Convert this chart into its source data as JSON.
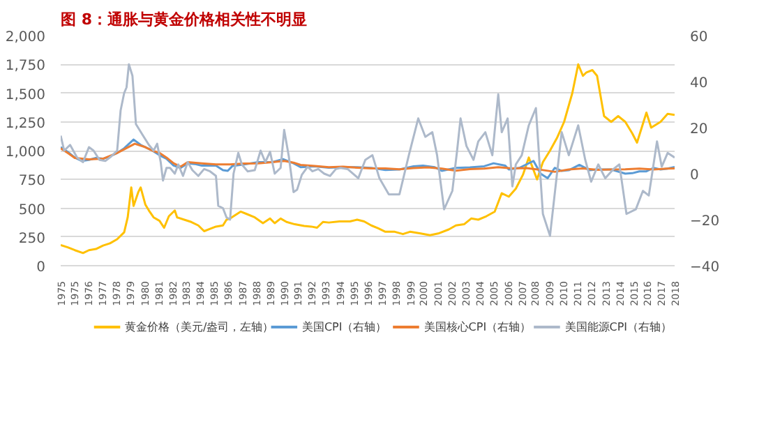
{
  "chart_data": {
    "type": "line",
    "title": "图 8：通胀与黄金价格相关性不明显",
    "xlim": [
      "1975-01",
      "2018-07"
    ],
    "xticks": [
      {
        "value": "1975-01",
        "label": "1975"
      },
      {
        "value": "1975-12",
        "label": "1975"
      },
      {
        "value": "1976-12",
        "label": "1976"
      },
      {
        "value": "1977-12",
        "label": "1977"
      },
      {
        "value": "1978-12",
        "label": "1978"
      },
      {
        "value": "1979-12",
        "label": "1979"
      },
      {
        "value": "1980-12",
        "label": "1980"
      },
      {
        "value": "1981-12",
        "label": "1981"
      },
      {
        "value": "1982-12",
        "label": "1982"
      },
      {
        "value": "1983-11",
        "label": "1983"
      },
      {
        "value": "1984-11",
        "label": "1984"
      },
      {
        "value": "1985-11",
        "label": "1985"
      },
      {
        "value": "1986-11",
        "label": "1986"
      },
      {
        "value": "1987-11",
        "label": "1987"
      },
      {
        "value": "1988-11",
        "label": "1988"
      },
      {
        "value": "1989-11",
        "label": "1989"
      },
      {
        "value": "1990-11",
        "label": "1990"
      },
      {
        "value": "1991-10",
        "label": "1991"
      },
      {
        "value": "1992-10",
        "label": "1992"
      },
      {
        "value": "1993-10",
        "label": "1993"
      },
      {
        "value": "1994-10",
        "label": "1994"
      },
      {
        "value": "1995-10",
        "label": "1995"
      },
      {
        "value": "1996-10",
        "label": "1996"
      },
      {
        "value": "1997-10",
        "label": "1997"
      },
      {
        "value": "1998-10",
        "label": "1998"
      },
      {
        "value": "1999-10",
        "label": "1999"
      },
      {
        "value": "2000-09",
        "label": "2000"
      },
      {
        "value": "2001-09",
        "label": "2001"
      },
      {
        "value": "2002-09",
        "label": "2002"
      },
      {
        "value": "2003-09",
        "label": "2003"
      },
      {
        "value": "2004-09",
        "label": "2004"
      },
      {
        "value": "2005-09",
        "label": "2005"
      },
      {
        "value": "2006-09",
        "label": "2006"
      },
      {
        "value": "2007-09",
        "label": "2007"
      },
      {
        "value": "2008-08",
        "label": "2008"
      },
      {
        "value": "2009-08",
        "label": "2009"
      },
      {
        "value": "2010-08",
        "label": "2010"
      },
      {
        "value": "2011-08",
        "label": "2011"
      },
      {
        "value": "2012-08",
        "label": "2012"
      },
      {
        "value": "2013-08",
        "label": "2013"
      },
      {
        "value": "2014-08",
        "label": "2014"
      },
      {
        "value": "2015-08",
        "label": "2015"
      },
      {
        "value": "2016-07",
        "label": "2016"
      },
      {
        "value": "2017-07",
        "label": "2017"
      },
      {
        "value": "2018-07",
        "label": "2018"
      }
    ],
    "ylim": [
      0,
      2000
    ],
    "yticks": [
      0,
      250,
      500,
      750,
      {
        "value": 1000,
        "label": "1,000"
      },
      {
        "value": 1250,
        "label": "1,250"
      },
      {
        "value": 1500,
        "label": "1,500"
      },
      {
        "value": 1750,
        "label": "1,750"
      },
      {
        "value": 2000,
        "label": "2,000"
      }
    ],
    "y2lim": [
      -40,
      60
    ],
    "y2ticks": [
      -40,
      -20,
      0,
      20,
      40,
      60
    ],
    "grid": "y",
    "legend": "bottom",
    "line_style": "solid",
    "series": [
      {
        "name": "黄金价格（美元/盎司，左轴）",
        "color": "#ffc000",
        "x": [
          "1975-01",
          "1975-07",
          "1976-01",
          "1976-08",
          "1977-01",
          "1977-07",
          "1978-01",
          "1978-07",
          "1979-01",
          "1979-07",
          "1979-10",
          "1980-01",
          "1980-03",
          "1980-07",
          "1980-09",
          "1981-01",
          "1981-04",
          "1981-08",
          "1982-01",
          "1982-05",
          "1982-09",
          "1983-02",
          "1983-04",
          "1983-10",
          "1984-04",
          "1984-10",
          "1985-03",
          "1985-08",
          "1986-01",
          "1986-07",
          "1986-10",
          "1987-01",
          "1987-10",
          "1988-03",
          "1988-10",
          "1989-05",
          "1989-11",
          "1990-03",
          "1990-08",
          "1991-01",
          "1991-08",
          "1992-04",
          "1992-10",
          "1993-03",
          "1993-08",
          "1994-01",
          "1994-10",
          "1995-07",
          "1996-01",
          "1996-07",
          "1997-01",
          "1997-07",
          "1998-01",
          "1998-09",
          "1999-04",
          "1999-10",
          "2000-07",
          "2001-03",
          "2001-10",
          "2002-07",
          "2003-01",
          "2003-08",
          "2004-02",
          "2004-08",
          "2005-03",
          "2005-10",
          "2006-04",
          "2006-10",
          "2007-04",
          "2007-10",
          "2008-03",
          "2008-10",
          "2009-03",
          "2009-09",
          "2010-03",
          "2010-09",
          "2011-04",
          "2011-09",
          "2012-01",
          "2012-04",
          "2012-09",
          "2013-01",
          "2013-07",
          "2014-01",
          "2014-07",
          "2015-01",
          "2015-07",
          "2015-11",
          "2016-07",
          "2016-11",
          "2017-07",
          "2018-01",
          "2018-07"
        ],
        "values": [
          180,
          160,
          135,
          110,
          135,
          145,
          175,
          195,
          230,
          290,
          420,
          680,
          520,
          640,
          680,
          530,
          480,
          420,
          390,
          330,
          430,
          480,
          420,
          400,
          380,
          350,
          300,
          320,
          340,
          350,
          400,
          410,
          470,
          450,
          420,
          370,
          410,
          370,
          410,
          380,
          360,
          345,
          340,
          330,
          380,
          375,
          385,
          385,
          400,
          385,
          350,
          325,
          295,
          295,
          275,
          295,
          280,
          265,
          280,
          315,
          350,
          360,
          410,
          400,
          430,
          470,
          630,
          600,
          670,
          790,
          940,
          750,
          900,
          1000,
          1110,
          1250,
          1500,
          1750,
          1650,
          1680,
          1700,
          1650,
          1300,
          1250,
          1300,
          1250,
          1150,
          1070,
          1330,
          1200,
          1250,
          1320,
          1310
        ]
      },
      {
        "name": "美国CPI（右轴）",
        "color": "#5b9bd5",
        "axis": "y2",
        "x": [
          "1975-01",
          "1975-07",
          "1976-01",
          "1976-07",
          "1977-01",
          "1977-07",
          "1978-01",
          "1978-07",
          "1979-01",
          "1979-07",
          "1980-03",
          "1980-09",
          "1981-01",
          "1981-07",
          "1982-01",
          "1982-07",
          "1983-01",
          "1983-07",
          "1984-01",
          "1984-07",
          "1985-01",
          "1985-07",
          "1986-01",
          "1986-07",
          "1986-11",
          "1987-03",
          "1988-01",
          "1989-01",
          "1990-01",
          "1990-10",
          "1991-07",
          "1992-01",
          "1993-01",
          "1994-01",
          "1995-01",
          "1996-01",
          "1997-01",
          "1998-01",
          "1999-01",
          "2000-01",
          "2000-09",
          "2001-07",
          "2002-01",
          "2003-01",
          "2004-01",
          "2005-01",
          "2005-09",
          "2006-07",
          "2006-10",
          "2007-07",
          "2008-07",
          "2009-01",
          "2009-07",
          "2010-01",
          "2010-07",
          "2011-01",
          "2011-10",
          "2012-07",
          "2013-01",
          "2014-01",
          "2015-01",
          "2015-07",
          "2016-01",
          "2016-07",
          "2017-01",
          "2017-07",
          "2018-01",
          "2018-07"
        ],
        "values": [
          11.5,
          9.5,
          7,
          5.5,
          6,
          6.8,
          6.5,
          7.5,
          9,
          11,
          14.8,
          12.5,
          11.5,
          10,
          8,
          6.5,
          3.5,
          2.5,
          4.5,
          4.2,
          3.5,
          3.5,
          3.5,
          1.5,
          1.2,
          3.3,
          4,
          5,
          5,
          6.3,
          4.5,
          2.8,
          3.2,
          2.6,
          2.8,
          2.8,
          2.5,
          1.6,
          1.8,
          3.2,
          3.5,
          2.8,
          1.2,
          2.5,
          2.7,
          3.2,
          4.5,
          3.5,
          1.8,
          2.5,
          5.5,
          0,
          -2,
          2.5,
          1.2,
          1.5,
          3.8,
          1.5,
          1.8,
          1.8,
          0,
          0.2,
          1,
          1,
          2.5,
          1.8,
          2.2,
          2.9
        ]
      },
      {
        "name": "美国核心CPI（右轴）",
        "color": "#ed7d31",
        "axis": "y2",
        "x": [
          "1975-01",
          "1975-07",
          "1976-01",
          "1977-01",
          "1978-01",
          "1979-01",
          "1980-04",
          "1981-01",
          "1981-07",
          "1982-01",
          "1982-07",
          "1983-01",
          "1983-07",
          "1984-01",
          "1985-01",
          "1986-01",
          "1987-01",
          "1988-01",
          "1989-01",
          "1990-01",
          "1990-11",
          "1991-07",
          "1992-01",
          "1993-01",
          "1994-01",
          "1995-01",
          "1996-01",
          "1997-01",
          "1998-01",
          "1999-01",
          "2000-01",
          "2001-01",
          "2002-01",
          "2003-01",
          "2004-01",
          "2005-01",
          "2006-01",
          "2007-01",
          "2008-01",
          "2009-01",
          "2010-01",
          "2011-01",
          "2012-01",
          "2013-01",
          "2014-01",
          "2015-01",
          "2016-01",
          "2017-01",
          "2018-01",
          "2018-07"
        ],
        "values": [
          11,
          9,
          6.8,
          6.2,
          6.5,
          9,
          13,
          11.5,
          10,
          9,
          7,
          4.5,
          3,
          5,
          4.5,
          4,
          4,
          4.4,
          4.5,
          5,
          5.5,
          4.8,
          3.8,
          3.3,
          2.8,
          3,
          2.6,
          2.3,
          2.3,
          1.9,
          2.4,
          2.7,
          2.2,
          1.3,
          2,
          2.2,
          2.8,
          2.3,
          2.4,
          1.7,
          0.8,
          1.8,
          2.3,
          1.7,
          1.8,
          1.9,
          2.2,
          1.8,
          2.2,
          2.3
        ]
      },
      {
        "name": "美国能源CPI（右轴）",
        "color": "#adb9ca",
        "axis": "y2",
        "x": [
          "1975-01",
          "1975-04",
          "1975-09",
          "1976-03",
          "1976-08",
          "1977-01",
          "1977-05",
          "1977-10",
          "1978-03",
          "1978-08",
          "1979-01",
          "1979-04",
          "1979-07",
          "1979-09",
          "1979-11",
          "1980-02",
          "1980-05",
          "1980-11",
          "1981-04",
          "1981-08",
          "1981-11",
          "1982-02",
          "1982-04",
          "1982-07",
          "1982-10",
          "1983-02",
          "1983-05",
          "1983-09",
          "1984-01",
          "1984-05",
          "1984-10",
          "1985-03",
          "1985-08",
          "1986-01",
          "1986-03",
          "1986-07",
          "1986-10",
          "1987-01",
          "1987-04",
          "1987-08",
          "1987-11",
          "1988-04",
          "1988-10",
          "1989-03",
          "1989-07",
          "1989-11",
          "1990-03",
          "1990-08",
          "1990-11",
          "1991-03",
          "1991-07",
          "1991-10",
          "1992-02",
          "1992-07",
          "1992-11",
          "1993-04",
          "1993-09",
          "1994-02",
          "1994-07",
          "1994-11",
          "1995-05",
          "1996-02",
          "1996-08",
          "1997-02",
          "1997-08",
          "1998-04",
          "1999-01",
          "1999-09",
          "2000-05",
          "2000-11",
          "2001-05",
          "2001-09",
          "2002-03",
          "2002-10",
          "2003-02",
          "2003-05",
          "2003-10",
          "2004-04",
          "2004-08",
          "2005-02",
          "2005-08",
          "2006-01",
          "2006-04",
          "2006-09",
          "2007-01",
          "2007-04",
          "2007-09",
          "2008-03",
          "2008-09",
          "2009-03",
          "2009-09",
          "2010-03",
          "2010-07",
          "2011-01",
          "2011-09",
          "2012-03",
          "2012-08",
          "2013-02",
          "2013-08",
          "2014-03",
          "2014-08",
          "2015-02",
          "2015-10",
          "2016-04",
          "2016-09",
          "2017-04",
          "2017-08",
          "2018-01",
          "2018-07"
        ],
        "values": [
          16.5,
          10,
          12.5,
          7,
          5,
          11.5,
          10,
          6,
          5.5,
          7.5,
          10,
          27.5,
          35,
          37.5,
          47.5,
          42.5,
          21.5,
          16.5,
          12.5,
          10,
          13,
          5,
          -3,
          2.5,
          2.5,
          0,
          4,
          -1,
          5,
          1.5,
          -1,
          2,
          1,
          -1,
          -14,
          -15,
          -19,
          -20,
          0,
          9,
          4,
          1,
          1.5,
          10,
          5,
          9.5,
          0,
          2.5,
          19,
          7.5,
          -8,
          -7,
          -0.5,
          3,
          1,
          2,
          0,
          -1,
          2,
          2.5,
          2,
          -2,
          6,
          8,
          -2,
          -9,
          -9,
          8,
          24,
          16,
          18,
          8,
          -15.5,
          -7.5,
          10,
          24,
          12,
          6,
          14,
          18,
          8,
          34.5,
          18,
          24,
          -5.5,
          4,
          8,
          21,
          28.5,
          -17.5,
          -27,
          0,
          18,
          8,
          21,
          6,
          -3.5,
          4,
          -2,
          2,
          4,
          -17.5,
          -15.5,
          -7.5,
          -9.5,
          14,
          3,
          9,
          7
        ]
      }
    ]
  }
}
